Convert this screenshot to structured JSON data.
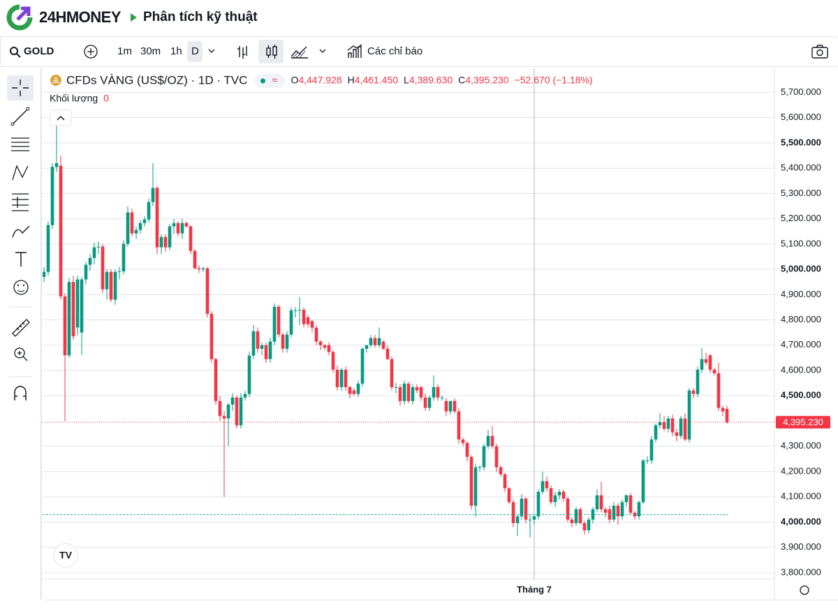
{
  "header": {
    "brand": "24HMONEY",
    "breadcrumb": "Phân tích kỹ thuật"
  },
  "toolbar": {
    "symbol": "GOLD",
    "intervals": [
      "1m",
      "30m",
      "1h",
      "D"
    ],
    "indicators": "Các chỉ báo"
  },
  "chart_data": {
    "type": "candlestick",
    "title": "CFDs VÀNG (US$/OZ) · 1D · TVC",
    "ohlc_prefixes": [
      "O",
      "H",
      "L",
      "C"
    ],
    "ohlc_labels": [
      "4,447.928",
      "4,461.450",
      "4,389.630",
      "4,395.230"
    ],
    "change_label": "−52.670 (−1.18%)",
    "volume_label": "Khối lượng",
    "volume": 0,
    "categories": [
      null,
      null,
      null,
      null,
      null,
      null,
      null,
      null,
      null,
      null,
      null,
      null,
      null,
      null,
      null,
      null,
      null,
      null,
      null,
      null,
      null,
      null,
      null,
      null,
      null,
      null,
      null,
      null,
      null,
      null,
      null,
      null,
      null,
      null,
      null,
      null,
      null,
      null,
      null,
      null,
      null,
      null,
      null,
      null,
      null,
      null,
      null,
      null,
      null,
      null,
      null,
      null,
      null,
      null,
      null,
      null,
      null,
      null,
      null,
      null,
      null,
      null,
      null,
      null,
      null,
      null,
      null,
      null,
      null,
      null,
      null,
      null,
      null,
      null,
      null,
      null,
      null,
      null,
      null,
      null,
      null,
      null,
      null,
      null,
      null,
      null,
      null,
      null,
      null,
      null,
      null,
      null,
      null,
      null,
      null,
      null,
      null,
      null,
      null,
      null,
      null,
      null,
      null,
      null,
      null,
      null,
      null,
      null,
      null,
      null,
      null,
      null,
      null,
      null,
      null,
      null,
      null,
      "Tháng 7",
      null,
      null,
      null,
      null,
      null,
      null,
      null,
      null,
      null,
      null,
      null,
      null,
      null,
      null,
      null,
      null,
      null,
      null,
      null,
      null,
      null,
      null,
      null,
      null,
      null,
      null,
      null,
      null,
      null,
      null,
      null,
      null,
      null,
      null,
      null,
      null,
      null,
      null,
      null,
      null,
      null,
      null,
      null,
      null,
      null,
      null
    ],
    "ohlc": [
      [
        4970,
        5010,
        4950,
        4990
      ],
      [
        4990,
        5190,
        4975,
        5175
      ],
      [
        5175,
        5420,
        5160,
        5405
      ],
      [
        5405,
        5600,
        5385,
        5420
      ],
      [
        5410,
        5450,
        4880,
        4893
      ],
      [
        4893,
        4905,
        4400,
        4660
      ],
      [
        4660,
        4965,
        4650,
        4950
      ],
      [
        4950,
        4975,
        4720,
        4735
      ],
      [
        4770,
        4975,
        4740,
        4960
      ],
      [
        4750,
        4970,
        4660,
        4960
      ],
      [
        4960,
        5030,
        4940,
        5018
      ],
      [
        5018,
        5060,
        4995,
        5045
      ],
      [
        5045,
        5105,
        5020,
        5087
      ],
      [
        5087,
        5110,
        5060,
        5090
      ],
      [
        5090,
        5100,
        4905,
        4921
      ],
      [
        4921,
        5000,
        4880,
        4990
      ],
      [
        4990,
        5000,
        4870,
        4880
      ],
      [
        4880,
        5000,
        4860,
        4990
      ],
      [
        4990,
        5010,
        4960,
        4992
      ],
      [
        4992,
        5115,
        4980,
        5101
      ],
      [
        5101,
        5250,
        5090,
        5225
      ],
      [
        5225,
        5240,
        5130,
        5142
      ],
      [
        5142,
        5170,
        5120,
        5156
      ],
      [
        5156,
        5195,
        5140,
        5183
      ],
      [
        5183,
        5210,
        5170,
        5197
      ],
      [
        5197,
        5280,
        5185,
        5266
      ],
      [
        5266,
        5420,
        5250,
        5322
      ],
      [
        5322,
        5330,
        5060,
        5087
      ],
      [
        5087,
        5140,
        5060,
        5128
      ],
      [
        5128,
        5140,
        5070,
        5087
      ],
      [
        5087,
        5180,
        5075,
        5170
      ],
      [
        5170,
        5200,
        5140,
        5183
      ],
      [
        5183,
        5190,
        5130,
        5142
      ],
      [
        5142,
        5200,
        5120,
        5183
      ],
      [
        5183,
        5190,
        5165,
        5170
      ],
      [
        5170,
        5175,
        5060,
        5073
      ],
      [
        5073,
        5080,
        5000,
        5004
      ],
      [
        5004,
        5015,
        4985,
        5000
      ],
      [
        5000,
        5010,
        4990,
        5004
      ],
      [
        5004,
        5010,
        4810,
        4824
      ],
      [
        4824,
        4835,
        4630,
        4645
      ],
      [
        4645,
        4650,
        4465,
        4479
      ],
      [
        4479,
        4500,
        4400,
        4420
      ],
      [
        4420,
        4440,
        4100,
        4410
      ],
      [
        4410,
        4470,
        4300,
        4465
      ],
      [
        4465,
        4510,
        4440,
        4493
      ],
      [
        4493,
        4500,
        4370,
        4383
      ],
      [
        4383,
        4510,
        4370,
        4493
      ],
      [
        4493,
        4520,
        4480,
        4507
      ],
      [
        4507,
        4675,
        4495,
        4659
      ],
      [
        4659,
        4780,
        4645,
        4755
      ],
      [
        4755,
        4770,
        4670,
        4686
      ],
      [
        4686,
        4710,
        4660,
        4700
      ],
      [
        4700,
        4710,
        4630,
        4645
      ],
      [
        4645,
        4730,
        4630,
        4714
      ],
      [
        4714,
        4865,
        4700,
        4852
      ],
      [
        4852,
        4860,
        4730,
        4742
      ],
      [
        4742,
        4750,
        4670,
        4686
      ],
      [
        4686,
        4755,
        4670,
        4742
      ],
      [
        4742,
        4850,
        4730,
        4838
      ],
      [
        4838,
        4850,
        4810,
        4838
      ],
      [
        4838,
        4890,
        4780,
        4840
      ],
      [
        4840,
        4850,
        4770,
        4783
      ],
      [
        4810,
        4820,
        4770,
        4783
      ],
      [
        4795,
        4800,
        4750,
        4769
      ],
      [
        4769,
        4780,
        4700,
        4714
      ],
      [
        4714,
        4720,
        4680,
        4700
      ],
      [
        4700,
        4705,
        4680,
        4690
      ],
      [
        4700,
        4710,
        4660,
        4673
      ],
      [
        4673,
        4680,
        4590,
        4603
      ],
      [
        4603,
        4620,
        4520,
        4534
      ],
      [
        4534,
        4610,
        4520,
        4603
      ],
      [
        4603,
        4615,
        4520,
        4534
      ],
      [
        4534,
        4540,
        4490,
        4507
      ],
      [
        4521,
        4530,
        4500,
        4507
      ],
      [
        4507,
        4560,
        4495,
        4548
      ],
      [
        4548,
        4690,
        4535,
        4686
      ],
      [
        4686,
        4700,
        4670,
        4700
      ],
      [
        4700,
        4740,
        4690,
        4728
      ],
      [
        4728,
        4740,
        4690,
        4700
      ],
      [
        4700,
        4770,
        4690,
        4728
      ],
      [
        4714,
        4720,
        4680,
        4686
      ],
      [
        4686,
        4700,
        4640,
        4645
      ],
      [
        4645,
        4655,
        4520,
        4534
      ],
      [
        4534,
        4550,
        4510,
        4534
      ],
      [
        4534,
        4545,
        4460,
        4479
      ],
      [
        4479,
        4560,
        4465,
        4548
      ],
      [
        4548,
        4555,
        4470,
        4479
      ],
      [
        4479,
        4545,
        4465,
        4534
      ],
      [
        4534,
        4545,
        4510,
        4521
      ],
      [
        4534,
        4540,
        4480,
        4493
      ],
      [
        4493,
        4510,
        4440,
        4452
      ],
      [
        4452,
        4500,
        4440,
        4493
      ],
      [
        4493,
        4580,
        4480,
        4534
      ],
      [
        4534,
        4545,
        4480,
        4493
      ],
      [
        4493,
        4500,
        4480,
        4493
      ],
      [
        4479,
        4490,
        4420,
        4438
      ],
      [
        4438,
        4480,
        4425,
        4479
      ],
      [
        4479,
        4490,
        4430,
        4438
      ],
      [
        4438,
        4450,
        4310,
        4327
      ],
      [
        4327,
        4335,
        4300,
        4313
      ],
      [
        4313,
        4320,
        4240,
        4258
      ],
      [
        4258,
        4265,
        4050,
        4065
      ],
      [
        4065,
        4230,
        4020,
        4217
      ],
      [
        4217,
        4225,
        4200,
        4217
      ],
      [
        4217,
        4310,
        4205,
        4300
      ],
      [
        4300,
        4365,
        4290,
        4341
      ],
      [
        4341,
        4380,
        4290,
        4300
      ],
      [
        4300,
        4310,
        4200,
        4217
      ],
      [
        4217,
        4225,
        4180,
        4189
      ],
      [
        4189,
        4195,
        4120,
        4134
      ],
      [
        4134,
        4140,
        4070,
        4079
      ],
      [
        4079,
        4090,
        3980,
        3996
      ],
      [
        3996,
        4030,
        3945,
        4023
      ],
      [
        4023,
        4110,
        4010,
        4093
      ],
      [
        4093,
        4100,
        3995,
        4010
      ],
      [
        4010,
        4030,
        3940,
        4010
      ],
      [
        4010,
        4030,
        3990,
        4023
      ],
      [
        4023,
        4130,
        4010,
        4120
      ],
      [
        4120,
        4200,
        4110,
        4162
      ],
      [
        4162,
        4180,
        4120,
        4134
      ],
      [
        4134,
        4145,
        4070,
        4079
      ],
      [
        4079,
        4120,
        4060,
        4106
      ],
      [
        4106,
        4130,
        4090,
        4120
      ],
      [
        4120,
        4130,
        4080,
        4093
      ],
      [
        4093,
        4100,
        4000,
        4010
      ],
      [
        4010,
        4020,
        3980,
        3996
      ],
      [
        3996,
        4060,
        3985,
        4051
      ],
      [
        4051,
        4060,
        3990,
        3996
      ],
      [
        3996,
        4005,
        3950,
        3968
      ],
      [
        3968,
        4020,
        3955,
        4010
      ],
      [
        4010,
        4060,
        3995,
        4051
      ],
      [
        4051,
        4130,
        4040,
        4106
      ],
      [
        4106,
        4160,
        4040,
        4051
      ],
      [
        4051,
        4060,
        4020,
        4037
      ],
      [
        4051,
        4065,
        3995,
        4010
      ],
      [
        4010,
        4080,
        4000,
        4065
      ],
      [
        4065,
        4075,
        3990,
        4023
      ],
      [
        4023,
        4090,
        4010,
        4079
      ],
      [
        4079,
        4110,
        4060,
        4106
      ],
      [
        4106,
        4115,
        4030,
        4037
      ],
      [
        4037,
        4045,
        4010,
        4023
      ],
      [
        4023,
        4085,
        4010,
        4079
      ],
      [
        4079,
        4250,
        4070,
        4244
      ],
      [
        4244,
        4260,
        4230,
        4244
      ],
      [
        4244,
        4340,
        4230,
        4327
      ],
      [
        4327,
        4390,
        4315,
        4383
      ],
      [
        4383,
        4430,
        4370,
        4396
      ],
      [
        4396,
        4420,
        4360,
        4369
      ],
      [
        4369,
        4420,
        4355,
        4410
      ],
      [
        4410,
        4425,
        4340,
        4355
      ],
      [
        4355,
        4370,
        4320,
        4341
      ],
      [
        4341,
        4420,
        4330,
        4410
      ],
      [
        4410,
        4430,
        4320,
        4327
      ],
      [
        4327,
        4530,
        4315,
        4521
      ],
      [
        4521,
        4530,
        4490,
        4507
      ],
      [
        4507,
        4615,
        4495,
        4603
      ],
      [
        4603,
        4690,
        4590,
        4645
      ],
      [
        4645,
        4670,
        4620,
        4631
      ],
      [
        4660,
        4665,
        4590,
        4603
      ],
      [
        4603,
        4610,
        4580,
        4589
      ],
      [
        4589,
        4630,
        4440,
        4452
      ],
      [
        4452,
        4460,
        4420,
        4438
      ],
      [
        4447.928,
        4461.45,
        4389.63,
        4395.23
      ]
    ],
    "up_color": "#089981",
    "down_color": "#f23645",
    "ylim": [
      3775,
      5795
    ],
    "yticks": [
      {
        "value": 3800,
        "label": "3,800.000"
      },
      {
        "value": 3900,
        "label": "3,900.000"
      },
      {
        "value": 4000,
        "label": "4,000.000"
      },
      {
        "value": 4100,
        "label": "4,100.000"
      },
      {
        "value": 4200,
        "label": "4,200.000"
      },
      {
        "value": 4300,
        "label": "4,300.000"
      },
      {
        "value": 4500,
        "label": "4,500.000"
      },
      {
        "value": 4600,
        "label": "4,600.000"
      },
      {
        "value": 4700,
        "label": "4,700.000"
      },
      {
        "value": 4800,
        "label": "4,800.000"
      },
      {
        "value": 4900,
        "label": "4,900.000"
      },
      {
        "value": 5000,
        "label": "5,000.000"
      },
      {
        "value": 5100,
        "label": "5,100.000"
      },
      {
        "value": 5200,
        "label": "5,200.000"
      },
      {
        "value": 5300,
        "label": "5,300.000"
      },
      {
        "value": 5400,
        "label": "5,400.000"
      },
      {
        "value": 5500,
        "label": "5,500.000"
      },
      {
        "value": 5600,
        "label": "5,600.000"
      },
      {
        "value": 5700,
        "label": "5,700.000"
      }
    ],
    "grid": true,
    "last_price": {
      "value": 4395.23,
      "label": "4,395.230"
    },
    "reference_line": 4030
  }
}
